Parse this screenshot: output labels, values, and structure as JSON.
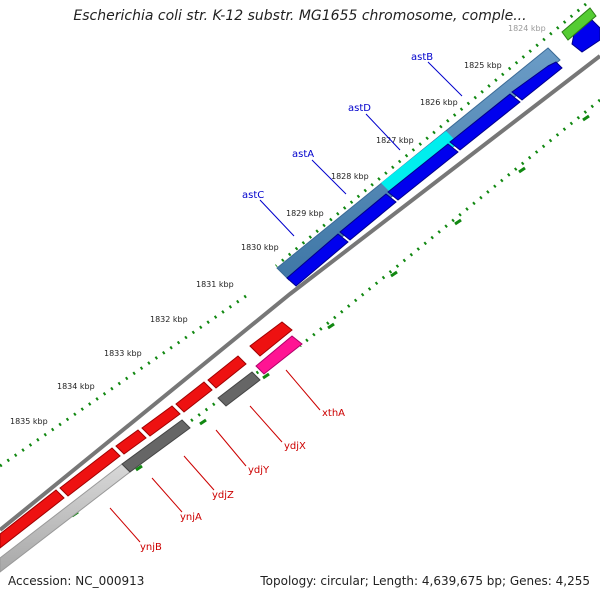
{
  "title": "Escherichia coli str. K-12 substr. MG1655 chromosome, comple...",
  "accession_label": "Accession: NC_000913",
  "summary_label": "Topology: circular; Length: 4,639,675 bp; Genes: 4,255",
  "ruler_ticks": [
    "1824 kbp",
    "1825 kbp",
    "1826 kbp",
    "1827 kbp",
    "1828 kbp",
    "1829 kbp",
    "1830 kbp",
    "1831 kbp",
    "1832 kbp",
    "1833 kbp",
    "1834 kbp",
    "1835 kbp"
  ],
  "upper_genes": [
    "astB",
    "astD",
    "astA",
    "astC"
  ],
  "lower_genes": [
    "xthA",
    "ydjX",
    "ydjY",
    "ydjZ",
    "ynjA",
    "ynjB"
  ],
  "colors": {
    "forward_gene": "#0000ee",
    "reverse_gene": "#ee1111",
    "operon_band": "#4f86b3",
    "highlight_cyan": "#00eeee",
    "highlight_magenta": "#ff1493",
    "dark_gene": "#666666",
    "light_band": "#bbbbbb",
    "green_gene": "#55cc33",
    "backbone": "#777777",
    "dotted_track": "#118811",
    "upper_label": "#0000cc",
    "lower_label": "#cc0000"
  }
}
